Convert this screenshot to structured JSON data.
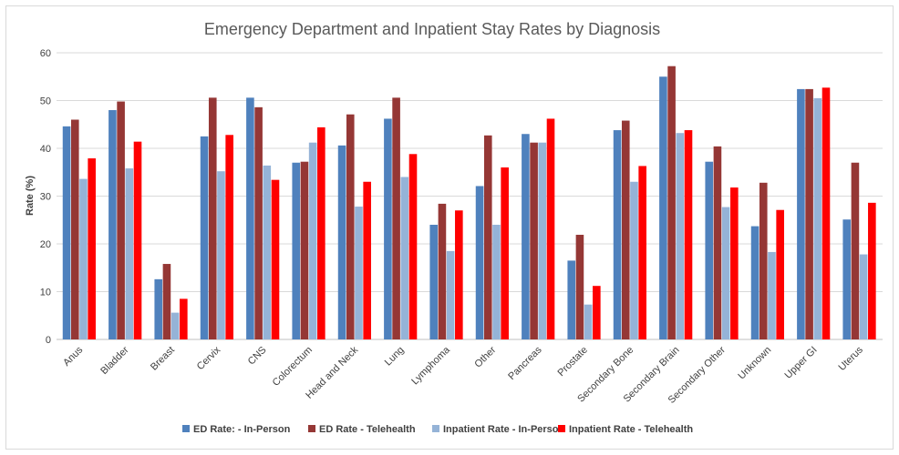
{
  "chart_data": {
    "type": "bar",
    "title": "Emergency Department and Inpatient Stay Rates by Diagnosis",
    "xlabel": "",
    "ylabel": "Rate (%)",
    "ylim": [
      0,
      60
    ],
    "yticks": [
      "0",
      "10",
      "20",
      "30",
      "40",
      "50",
      "60"
    ],
    "grid": true,
    "legend_position": "bottom",
    "categories": [
      "Anus",
      "Bladder",
      "Breast",
      "Cervix",
      "CNS",
      "Colorectum",
      "Head and Neck",
      "Lung",
      "Lymphoma",
      "Other",
      "Pancreas",
      "Prostate",
      "Secondary Bone",
      "Secondary Brain",
      "Secondary Other",
      "Unknown",
      "Upper GI",
      "Uterus"
    ],
    "series": [
      {
        "name": "ED Rate: - In-Person",
        "color": "#4f81bd",
        "values": [
          44.6,
          48.0,
          12.6,
          42.5,
          50.6,
          37.0,
          40.6,
          46.2,
          24.0,
          32.1,
          43.0,
          16.5,
          43.8,
          55.0,
          37.2,
          23.7,
          52.4,
          25.1
        ]
      },
      {
        "name": "ED Rate - Telehealth",
        "color": "#953735",
        "values": [
          46.0,
          49.8,
          15.8,
          50.6,
          48.6,
          37.2,
          47.1,
          50.6,
          28.4,
          42.7,
          41.2,
          21.9,
          45.8,
          57.2,
          40.4,
          32.8,
          52.4,
          37.0
        ]
      },
      {
        "name": "Inpatient Rate - In-Person",
        "color": "#95b3d7",
        "values": [
          33.6,
          35.8,
          5.6,
          35.2,
          36.4,
          41.2,
          27.8,
          34.0,
          18.5,
          24.0,
          41.2,
          7.3,
          33.0,
          43.2,
          27.7,
          18.3,
          50.5,
          17.8
        ]
      },
      {
        "name": "Inpatient Rate - Telehealth",
        "color": "#ff0000",
        "values": [
          37.9,
          41.4,
          8.5,
          42.8,
          33.4,
          44.4,
          33.0,
          38.8,
          27.0,
          36.0,
          46.2,
          11.2,
          36.3,
          43.8,
          31.8,
          27.1,
          52.7,
          28.6
        ]
      }
    ]
  }
}
